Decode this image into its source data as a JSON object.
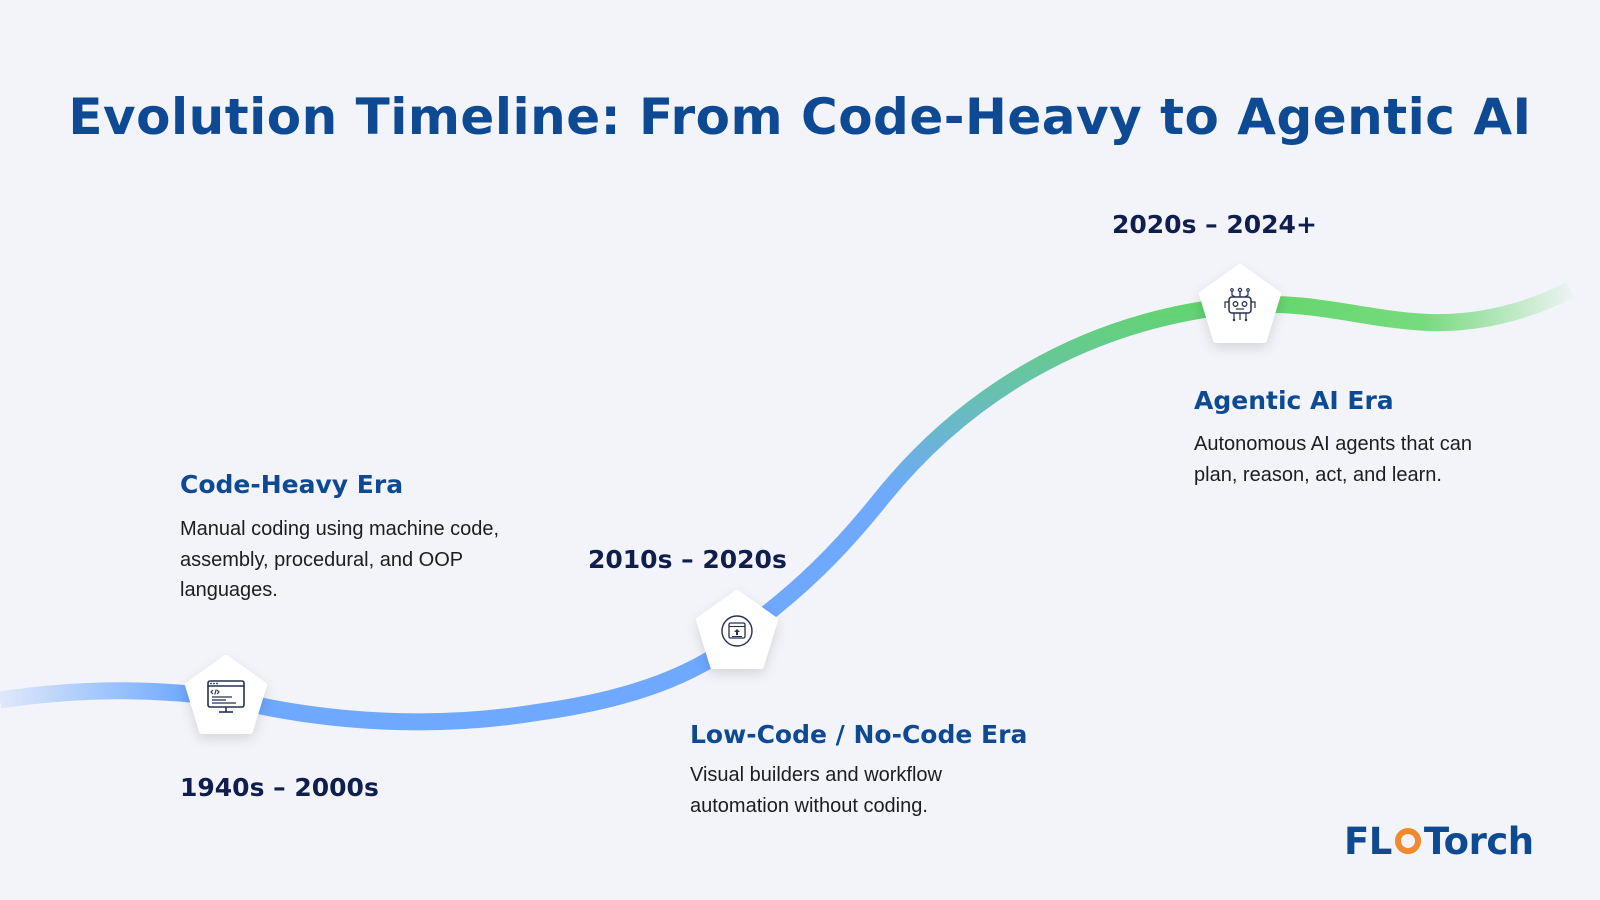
{
  "title": "Evolution Timeline: From Code-Heavy to Agentic AI",
  "colors": {
    "title": "#0d4a93",
    "date": "#0f1e4d",
    "curve_start": "#6ea8ff",
    "curve_end": "#62d66a",
    "logo_accent": "#f08a2a"
  },
  "eras": [
    {
      "date": "1940s – 2000s",
      "name": "Code-Heavy Era",
      "description": "Manual coding using machine code, assembly, procedural, and OOP languages.",
      "icon": "code-monitor-icon"
    },
    {
      "date": "2010s – 2020s",
      "name": "Low-Code / No-Code Era",
      "description": "Visual builders and workflow automation without coding.",
      "icon": "visual-builder-icon"
    },
    {
      "date": "2020s – 2024+",
      "name": "Agentic AI Era",
      "description": "Autonomous AI agents that can plan, reason, act, and learn.",
      "icon": "robot-icon"
    }
  ],
  "logo": {
    "part1": "FL",
    "part2": "Torch"
  }
}
